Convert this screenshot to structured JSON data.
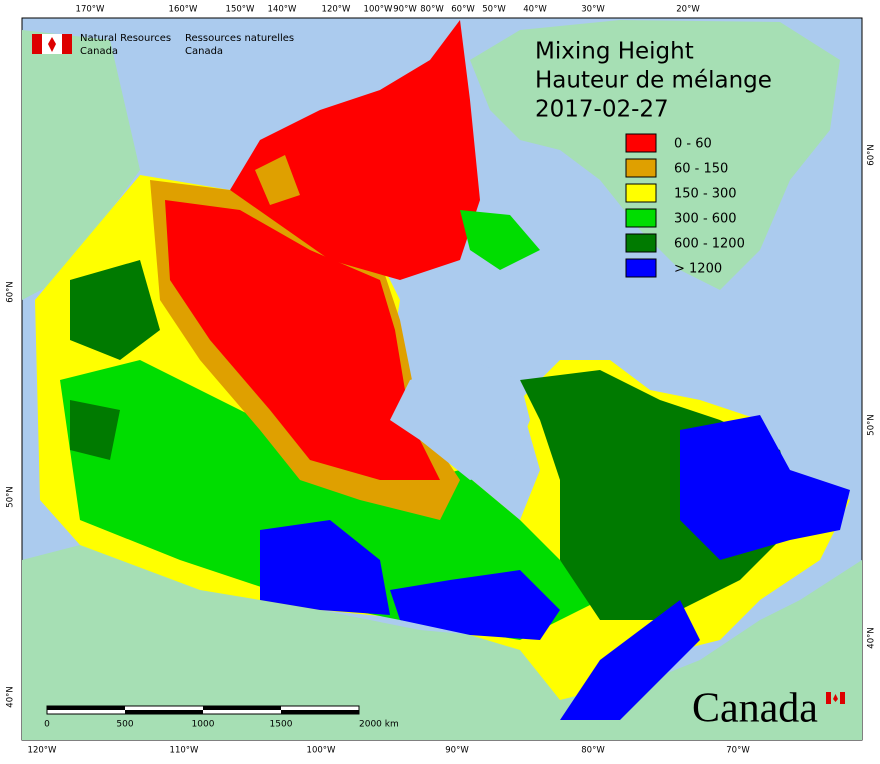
{
  "header": {
    "agency_en": [
      "Natural Resources",
      "Canada"
    ],
    "agency_fr": [
      "Ressources naturelles",
      "Canada"
    ]
  },
  "title": [
    "Mixing Height",
    "Hauteur de mélange",
    "2017-02-27"
  ],
  "legend": [
    {
      "label": "0 - 60",
      "color": "#ff0000"
    },
    {
      "label": "60 - 150",
      "color": "#dfa000"
    },
    {
      "label": "150 - 300",
      "color": "#ffff00"
    },
    {
      "label": "300 - 600",
      "color": "#00dd00"
    },
    {
      "label": "600 - 1200",
      "color": "#007a00"
    },
    {
      "label": "> 1200",
      "color": "#0000ff"
    }
  ],
  "graticule": {
    "top": [
      "170°W",
      "160°W",
      "150°W",
      "140°W",
      "120°W",
      "100°W",
      "90°W",
      "80°W",
      "60°W",
      "50°W",
      "40°W",
      "30°W",
      "20°W"
    ],
    "bottom": [
      "120°W",
      "110°W",
      "100°W",
      "90°W",
      "80°W",
      "70°W"
    ],
    "left": [
      "60°N",
      "50°N",
      "40°N"
    ],
    "right": [
      "60°N",
      "50°N",
      "40°N"
    ]
  },
  "scale_bar": {
    "labels": [
      "0",
      "500",
      "1000",
      "1500",
      "2000  km"
    ]
  },
  "wordmark": "Canada"
}
